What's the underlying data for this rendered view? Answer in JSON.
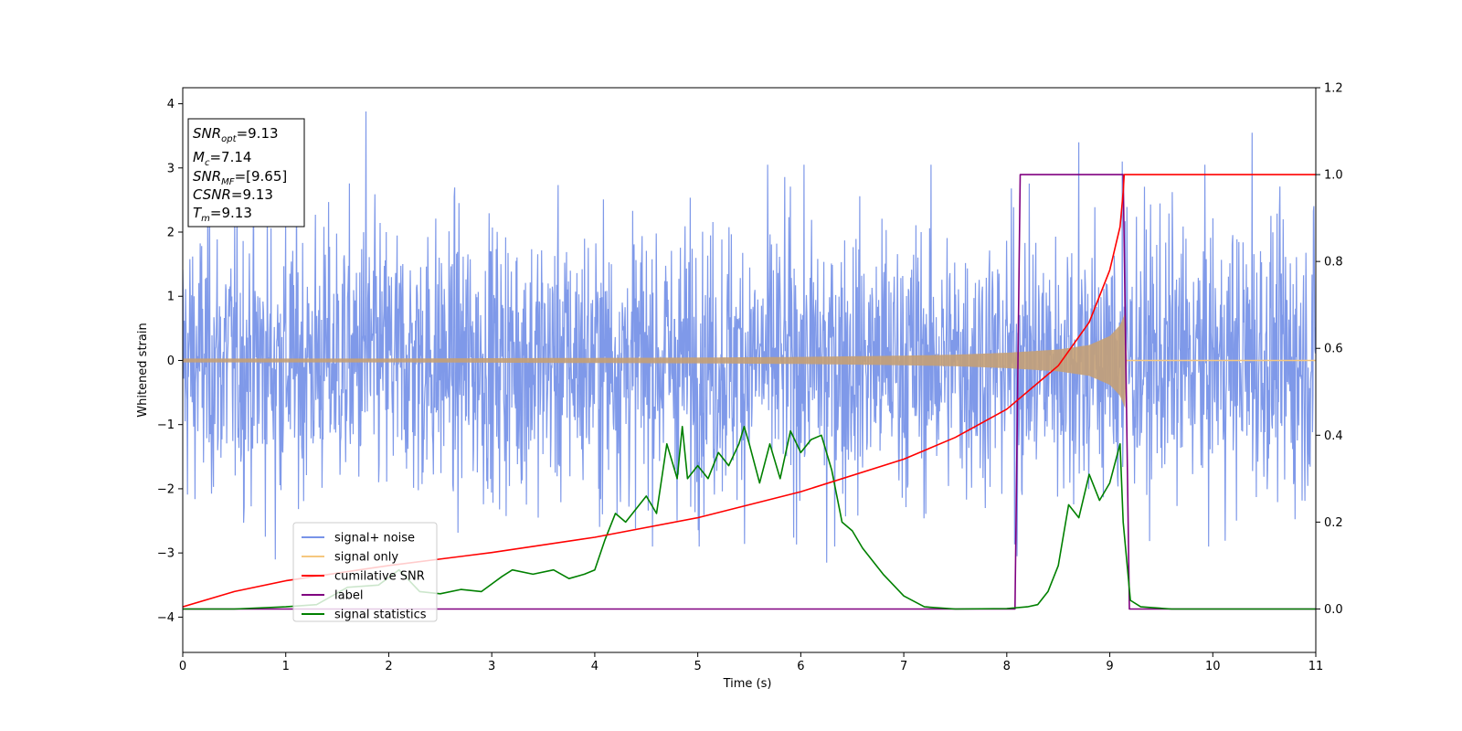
{
  "chart_data": {
    "type": "line",
    "xlabel": "Time (s)",
    "ylabel": "Whitened strain",
    "xlim": [
      0,
      11
    ],
    "ylim": [
      -4.55,
      4.25
    ],
    "y2lim": [
      -0.1,
      1.2
    ],
    "x_ticks": [
      0,
      1,
      2,
      3,
      4,
      5,
      6,
      7,
      8,
      9,
      10,
      11
    ],
    "y_ticks": [
      -4,
      -3,
      -2,
      -1,
      0,
      1,
      2,
      3,
      4
    ],
    "y2_ticks": [
      "0.0",
      "0.2",
      "0.4",
      "0.6",
      "0.8",
      "1.0",
      "1.2"
    ],
    "grid": false,
    "legend_position": "lower-left",
    "series": [
      {
        "name": "signal+ noise",
        "axis": "left",
        "color": "#7893e8",
        "noise_band": {
          "x_range": [
            0,
            11
          ],
          "typical_range": [
            -2.1,
            2.4
          ],
          "extremes": [
            [
              0.9,
              -3.1
            ],
            [
              1.78,
              3.88
            ],
            [
              6.25,
              -3.15
            ],
            [
              8.1,
              -3.05
            ],
            [
              8.7,
              3.4
            ],
            [
              9.12,
              3.1
            ],
            [
              10.38,
              3.55
            ]
          ]
        }
      },
      {
        "name": "signal only",
        "axis": "left",
        "color": "#f5c77e",
        "envelope": {
          "x": [
            0,
            1,
            2,
            3,
            4,
            5,
            6,
            7,
            7.5,
            8,
            8.5,
            8.8,
            9.0,
            9.1,
            9.15,
            9.16,
            11
          ],
          "amplitude": [
            0.03,
            0.03,
            0.03,
            0.035,
            0.04,
            0.045,
            0.055,
            0.075,
            0.09,
            0.12,
            0.17,
            0.24,
            0.38,
            0.55,
            0.75,
            0,
            0
          ]
        }
      },
      {
        "name": "cumilative SNR",
        "axis": "right",
        "color": "#ff0000",
        "x": [
          0,
          0.5,
          1,
          2,
          3,
          4,
          5,
          6,
          7,
          7.5,
          8,
          8.5,
          8.8,
          9.0,
          9.1,
          9.13,
          9.14,
          11
        ],
        "y": [
          0.005,
          0.04,
          0.065,
          0.1,
          0.13,
          0.165,
          0.21,
          0.27,
          0.345,
          0.395,
          0.46,
          0.56,
          0.66,
          0.78,
          0.88,
          0.96,
          1.0,
          1.0
        ]
      },
      {
        "name": "label",
        "axis": "right",
        "color": "#800080",
        "x": [
          0,
          8.08,
          8.13,
          9.13,
          9.19,
          11
        ],
        "y": [
          0,
          0,
          1,
          1,
          0,
          0
        ]
      },
      {
        "name": "signal statistics",
        "axis": "right",
        "color": "#008000",
        "x": [
          0,
          0.5,
          1.0,
          1.3,
          1.6,
          1.9,
          2.1,
          2.3,
          2.5,
          2.7,
          2.9,
          3.1,
          3.2,
          3.4,
          3.6,
          3.75,
          3.9,
          4.0,
          4.1,
          4.2,
          4.3,
          4.4,
          4.5,
          4.6,
          4.7,
          4.8,
          4.85,
          4.9,
          5.0,
          5.1,
          5.2,
          5.3,
          5.4,
          5.45,
          5.5,
          5.6,
          5.7,
          5.8,
          5.9,
          6.0,
          6.1,
          6.2,
          6.3,
          6.4,
          6.5,
          6.6,
          6.8,
          7.0,
          7.2,
          7.5,
          8.0,
          8.2,
          8.3,
          8.4,
          8.5,
          8.6,
          8.7,
          8.8,
          8.9,
          9.0,
          9.1,
          9.13,
          9.2,
          9.3,
          9.6,
          11
        ],
        "y": [
          0,
          0,
          0.005,
          0.01,
          0.05,
          0.055,
          0.09,
          0.04,
          0.035,
          0.045,
          0.04,
          0.075,
          0.09,
          0.08,
          0.09,
          0.07,
          0.08,
          0.09,
          0.16,
          0.22,
          0.2,
          0.23,
          0.26,
          0.22,
          0.38,
          0.3,
          0.42,
          0.3,
          0.33,
          0.3,
          0.36,
          0.33,
          0.38,
          0.42,
          0.38,
          0.29,
          0.38,
          0.3,
          0.41,
          0.36,
          0.39,
          0.4,
          0.32,
          0.2,
          0.18,
          0.14,
          0.08,
          0.03,
          0.005,
          0,
          0.001,
          0.005,
          0.01,
          0.04,
          0.1,
          0.24,
          0.21,
          0.31,
          0.25,
          0.29,
          0.38,
          0.2,
          0.02,
          0.005,
          0,
          0
        ]
      }
    ]
  },
  "info_box": {
    "snr_opt_label": "SNR",
    "snr_opt_sub": "opt",
    "snr_opt_value": "=9.13",
    "mc_label": "M",
    "mc_sub": "c",
    "mc_value": "=7.14",
    "snr_mf_label": "SNR",
    "snr_mf_sub": "MF",
    "snr_mf_value": "=[9.65]",
    "csnr_label": "CSNR",
    "csnr_value": "=9.13",
    "tm_label": "T",
    "tm_sub": "m",
    "tm_value": "=9.13"
  }
}
